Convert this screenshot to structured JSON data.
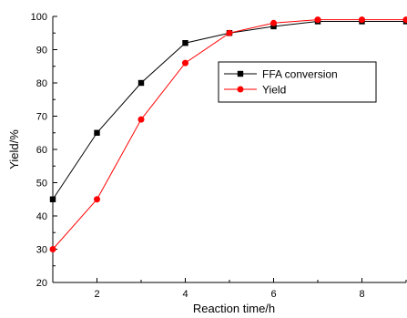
{
  "chart_data": {
    "type": "line",
    "title": "",
    "xlabel": "Reaction time/h",
    "ylabel": "Yield/%",
    "xlim": [
      1,
      9
    ],
    "ylim": [
      20,
      100
    ],
    "x_ticks": [
      2,
      4,
      6,
      8
    ],
    "y_ticks": [
      20,
      30,
      40,
      50,
      60,
      70,
      80,
      90,
      100
    ],
    "grid": false,
    "legend_position": "upper-right",
    "series": [
      {
        "name": "FFA conversion",
        "color": "#000000",
        "marker": "square",
        "x": [
          1,
          2,
          3,
          4,
          5,
          6,
          7,
          8,
          9
        ],
        "values": [
          45,
          65,
          80,
          92,
          95,
          97,
          98.5,
          98.5,
          98.5
        ]
      },
      {
        "name": "Yield",
        "color": "#ff0000",
        "marker": "circle",
        "x": [
          1,
          2,
          3,
          4,
          5,
          6,
          7,
          8,
          9
        ],
        "values": [
          30,
          45,
          69,
          86,
          95,
          98,
          99,
          99,
          99
        ]
      }
    ]
  }
}
